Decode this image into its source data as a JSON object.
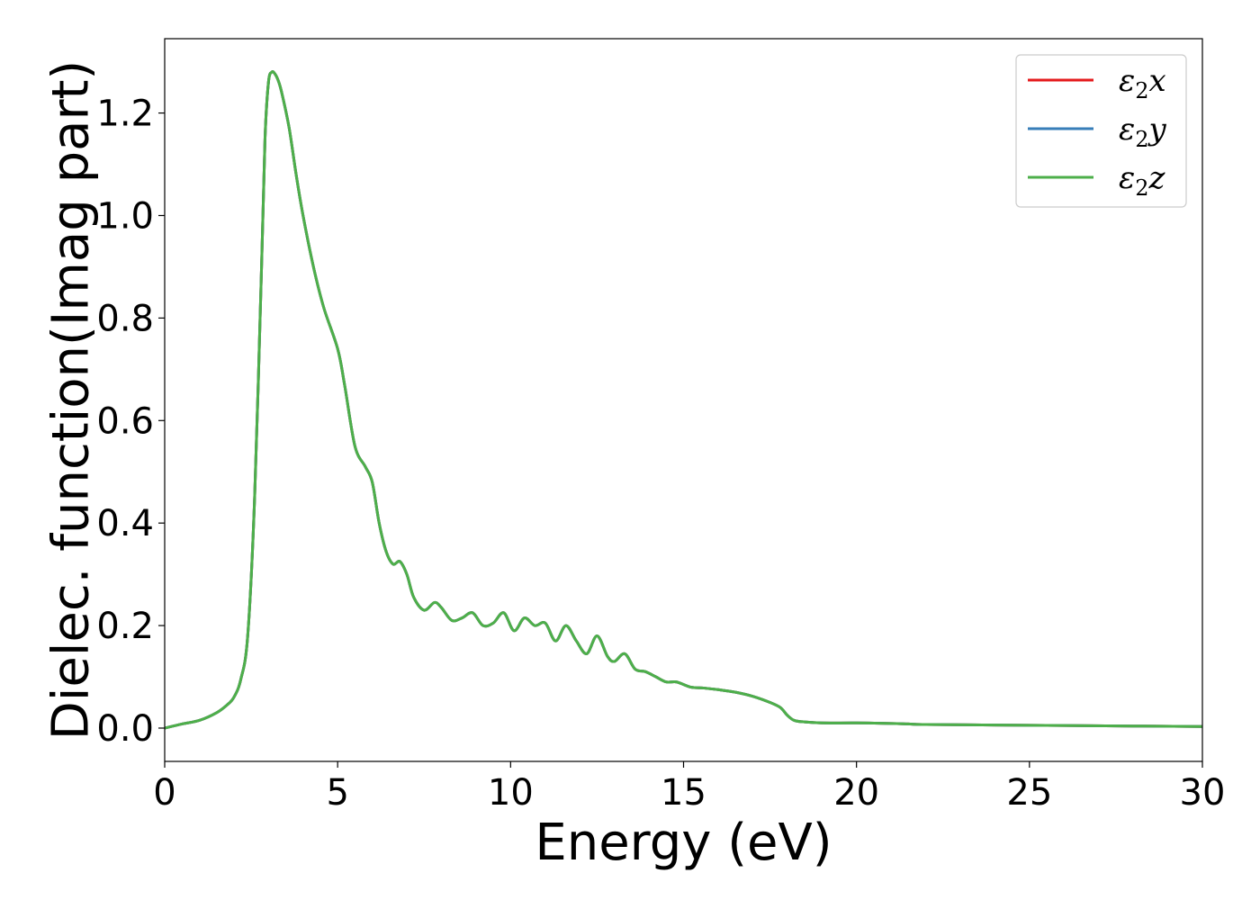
{
  "chart_data": {
    "type": "line",
    "title": "",
    "xlabel": "Energy (eV)",
    "ylabel": "Dielec. function(Imag part)",
    "xlim": [
      0,
      30
    ],
    "ylim": [
      -0.065,
      1.345
    ],
    "x_ticks": [
      "0",
      "5",
      "10",
      "15",
      "20",
      "25",
      "30"
    ],
    "y_ticks": [
      "0.0",
      "0.2",
      "0.4",
      "0.6",
      "0.8",
      "1.0",
      "1.2"
    ],
    "grid": false,
    "legend_position": "top-right",
    "series": [
      {
        "name": "ε2x",
        "color": "#e41a1c",
        "x": [
          0,
          0.5,
          1.0,
          1.5,
          1.8,
          2.0,
          2.2,
          2.4,
          2.6,
          2.8,
          2.9,
          3.0,
          3.1,
          3.2,
          3.3,
          3.4,
          3.6,
          3.8,
          4.0,
          4.3,
          4.6,
          5.0,
          5.2,
          5.5,
          5.8,
          6.0,
          6.2,
          6.4,
          6.6,
          6.8,
          7.0,
          7.2,
          7.5,
          7.8,
          8.0,
          8.3,
          8.6,
          8.9,
          9.2,
          9.5,
          9.8,
          10.1,
          10.4,
          10.7,
          11.0,
          11.3,
          11.6,
          11.9,
          12.2,
          12.5,
          12.8,
          13.0,
          13.3,
          13.6,
          13.9,
          14.2,
          14.5,
          14.8,
          15.2,
          15.6,
          16.0,
          16.5,
          17.0,
          17.5,
          17.8,
          18.0,
          18.2,
          18.5,
          19.0,
          20.0,
          21.0,
          21.5,
          22.0,
          24.0,
          26.0,
          28.0,
          30.0
        ],
        "y": [
          0.0,
          0.008,
          0.015,
          0.03,
          0.045,
          0.06,
          0.095,
          0.18,
          0.45,
          0.9,
          1.15,
          1.26,
          1.28,
          1.275,
          1.26,
          1.235,
          1.17,
          1.08,
          1.0,
          0.9,
          0.82,
          0.74,
          0.67,
          0.55,
          0.51,
          0.48,
          0.4,
          0.345,
          0.32,
          0.325,
          0.3,
          0.255,
          0.23,
          0.245,
          0.235,
          0.21,
          0.215,
          0.225,
          0.2,
          0.205,
          0.225,
          0.19,
          0.215,
          0.2,
          0.205,
          0.17,
          0.2,
          0.17,
          0.145,
          0.18,
          0.14,
          0.13,
          0.145,
          0.115,
          0.11,
          0.1,
          0.09,
          0.09,
          0.08,
          0.078,
          0.075,
          0.07,
          0.062,
          0.05,
          0.04,
          0.025,
          0.015,
          0.012,
          0.01,
          0.01,
          0.009,
          0.008,
          0.007,
          0.006,
          0.005,
          0.004,
          0.003
        ]
      },
      {
        "name": "ε2y",
        "color": "#377eb8",
        "x": [
          0,
          0.5,
          1.0,
          1.5,
          1.8,
          2.0,
          2.2,
          2.4,
          2.6,
          2.8,
          2.9,
          3.0,
          3.1,
          3.2,
          3.3,
          3.4,
          3.6,
          3.8,
          4.0,
          4.3,
          4.6,
          5.0,
          5.2,
          5.5,
          5.8,
          6.0,
          6.2,
          6.4,
          6.6,
          6.8,
          7.0,
          7.2,
          7.5,
          7.8,
          8.0,
          8.3,
          8.6,
          8.9,
          9.2,
          9.5,
          9.8,
          10.1,
          10.4,
          10.7,
          11.0,
          11.3,
          11.6,
          11.9,
          12.2,
          12.5,
          12.8,
          13.0,
          13.3,
          13.6,
          13.9,
          14.2,
          14.5,
          14.8,
          15.2,
          15.6,
          16.0,
          16.5,
          17.0,
          17.5,
          17.8,
          18.0,
          18.2,
          18.5,
          19.0,
          20.0,
          21.0,
          21.5,
          22.0,
          24.0,
          26.0,
          28.0,
          30.0
        ],
        "y": [
          0.0,
          0.008,
          0.015,
          0.03,
          0.045,
          0.06,
          0.095,
          0.18,
          0.45,
          0.9,
          1.15,
          1.26,
          1.28,
          1.275,
          1.26,
          1.235,
          1.17,
          1.08,
          1.0,
          0.9,
          0.82,
          0.74,
          0.67,
          0.55,
          0.51,
          0.48,
          0.4,
          0.345,
          0.32,
          0.325,
          0.3,
          0.255,
          0.23,
          0.245,
          0.235,
          0.21,
          0.215,
          0.225,
          0.2,
          0.205,
          0.225,
          0.19,
          0.215,
          0.2,
          0.205,
          0.17,
          0.2,
          0.17,
          0.145,
          0.18,
          0.14,
          0.13,
          0.145,
          0.115,
          0.11,
          0.1,
          0.09,
          0.09,
          0.08,
          0.078,
          0.075,
          0.07,
          0.062,
          0.05,
          0.04,
          0.025,
          0.015,
          0.012,
          0.01,
          0.01,
          0.009,
          0.008,
          0.007,
          0.006,
          0.005,
          0.004,
          0.003
        ]
      },
      {
        "name": "ε2z",
        "color": "#4daf4a",
        "x": [
          0,
          0.5,
          1.0,
          1.5,
          1.8,
          2.0,
          2.2,
          2.4,
          2.6,
          2.8,
          2.9,
          3.0,
          3.1,
          3.2,
          3.3,
          3.4,
          3.6,
          3.8,
          4.0,
          4.3,
          4.6,
          5.0,
          5.2,
          5.5,
          5.8,
          6.0,
          6.2,
          6.4,
          6.6,
          6.8,
          7.0,
          7.2,
          7.5,
          7.8,
          8.0,
          8.3,
          8.6,
          8.9,
          9.2,
          9.5,
          9.8,
          10.1,
          10.4,
          10.7,
          11.0,
          11.3,
          11.6,
          11.9,
          12.2,
          12.5,
          12.8,
          13.0,
          13.3,
          13.6,
          13.9,
          14.2,
          14.5,
          14.8,
          15.2,
          15.6,
          16.0,
          16.5,
          17.0,
          17.5,
          17.8,
          18.0,
          18.2,
          18.5,
          19.0,
          20.0,
          21.0,
          21.5,
          22.0,
          24.0,
          26.0,
          28.0,
          30.0
        ],
        "y": [
          0.0,
          0.008,
          0.015,
          0.03,
          0.045,
          0.06,
          0.095,
          0.18,
          0.45,
          0.9,
          1.15,
          1.26,
          1.28,
          1.275,
          1.26,
          1.235,
          1.17,
          1.08,
          1.0,
          0.9,
          0.82,
          0.74,
          0.67,
          0.55,
          0.51,
          0.48,
          0.4,
          0.345,
          0.32,
          0.325,
          0.3,
          0.255,
          0.23,
          0.245,
          0.235,
          0.21,
          0.215,
          0.225,
          0.2,
          0.205,
          0.225,
          0.19,
          0.215,
          0.2,
          0.205,
          0.17,
          0.2,
          0.17,
          0.145,
          0.18,
          0.14,
          0.13,
          0.145,
          0.115,
          0.11,
          0.1,
          0.09,
          0.09,
          0.08,
          0.078,
          0.075,
          0.07,
          0.062,
          0.05,
          0.04,
          0.025,
          0.015,
          0.012,
          0.01,
          0.01,
          0.009,
          0.008,
          0.007,
          0.006,
          0.005,
          0.004,
          0.003
        ]
      }
    ]
  }
}
